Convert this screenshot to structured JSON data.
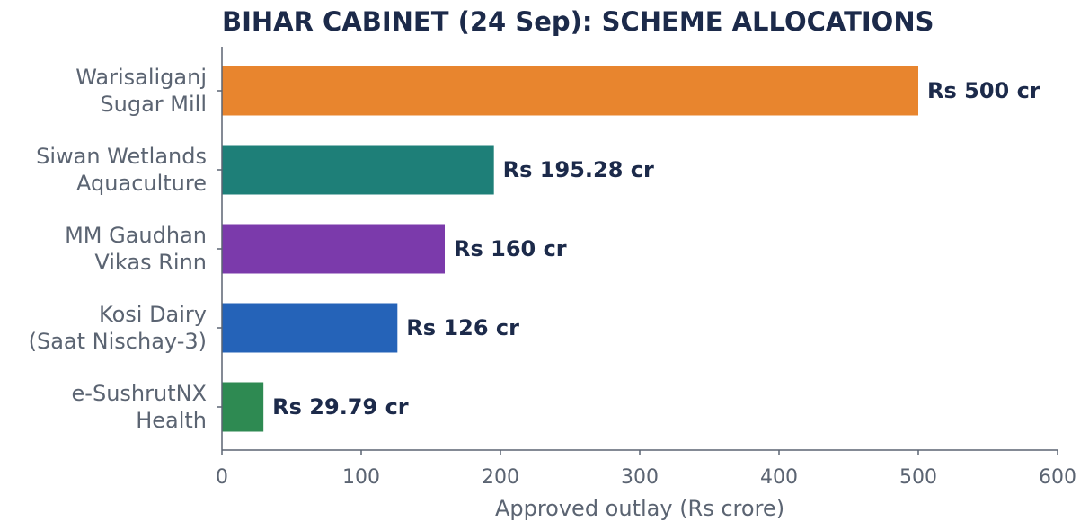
{
  "chart_data": {
    "type": "bar",
    "orientation": "horizontal",
    "title": "BIHAR CABINET (24 Sep): SCHEME ALLOCATIONS",
    "xlabel": "Approved outlay (Rs crore)",
    "ylabel": "",
    "xlim": [
      0,
      600
    ],
    "xticks": [
      0,
      100,
      200,
      300,
      400,
      500,
      600
    ],
    "grid": false,
    "legend": "none",
    "categories": [
      [
        "Warisaliganj",
        "Sugar Mill"
      ],
      [
        "Siwan Wetlands",
        "Aquaculture"
      ],
      [
        "MM Gaudhan",
        "Vikas Rinn"
      ],
      [
        "Kosi Dairy",
        "(Saat Nischay-3)"
      ],
      [
        "e-SushrutNX",
        "Health"
      ]
    ],
    "values": [
      500,
      195.28,
      160,
      126,
      29.79
    ],
    "data_labels": [
      "Rs 500 cr",
      "Rs 195.28 cr",
      "Rs 160 cr",
      "Rs 126 cr",
      "Rs 29.79 cr"
    ],
    "colors": [
      "#e8852e",
      "#1e7f78",
      "#7b3aab",
      "#2563b8",
      "#2e8a52"
    ]
  },
  "colors": {
    "title": "#1c2a4a",
    "axis": "#5b6472",
    "label": "#1c2a4a"
  }
}
